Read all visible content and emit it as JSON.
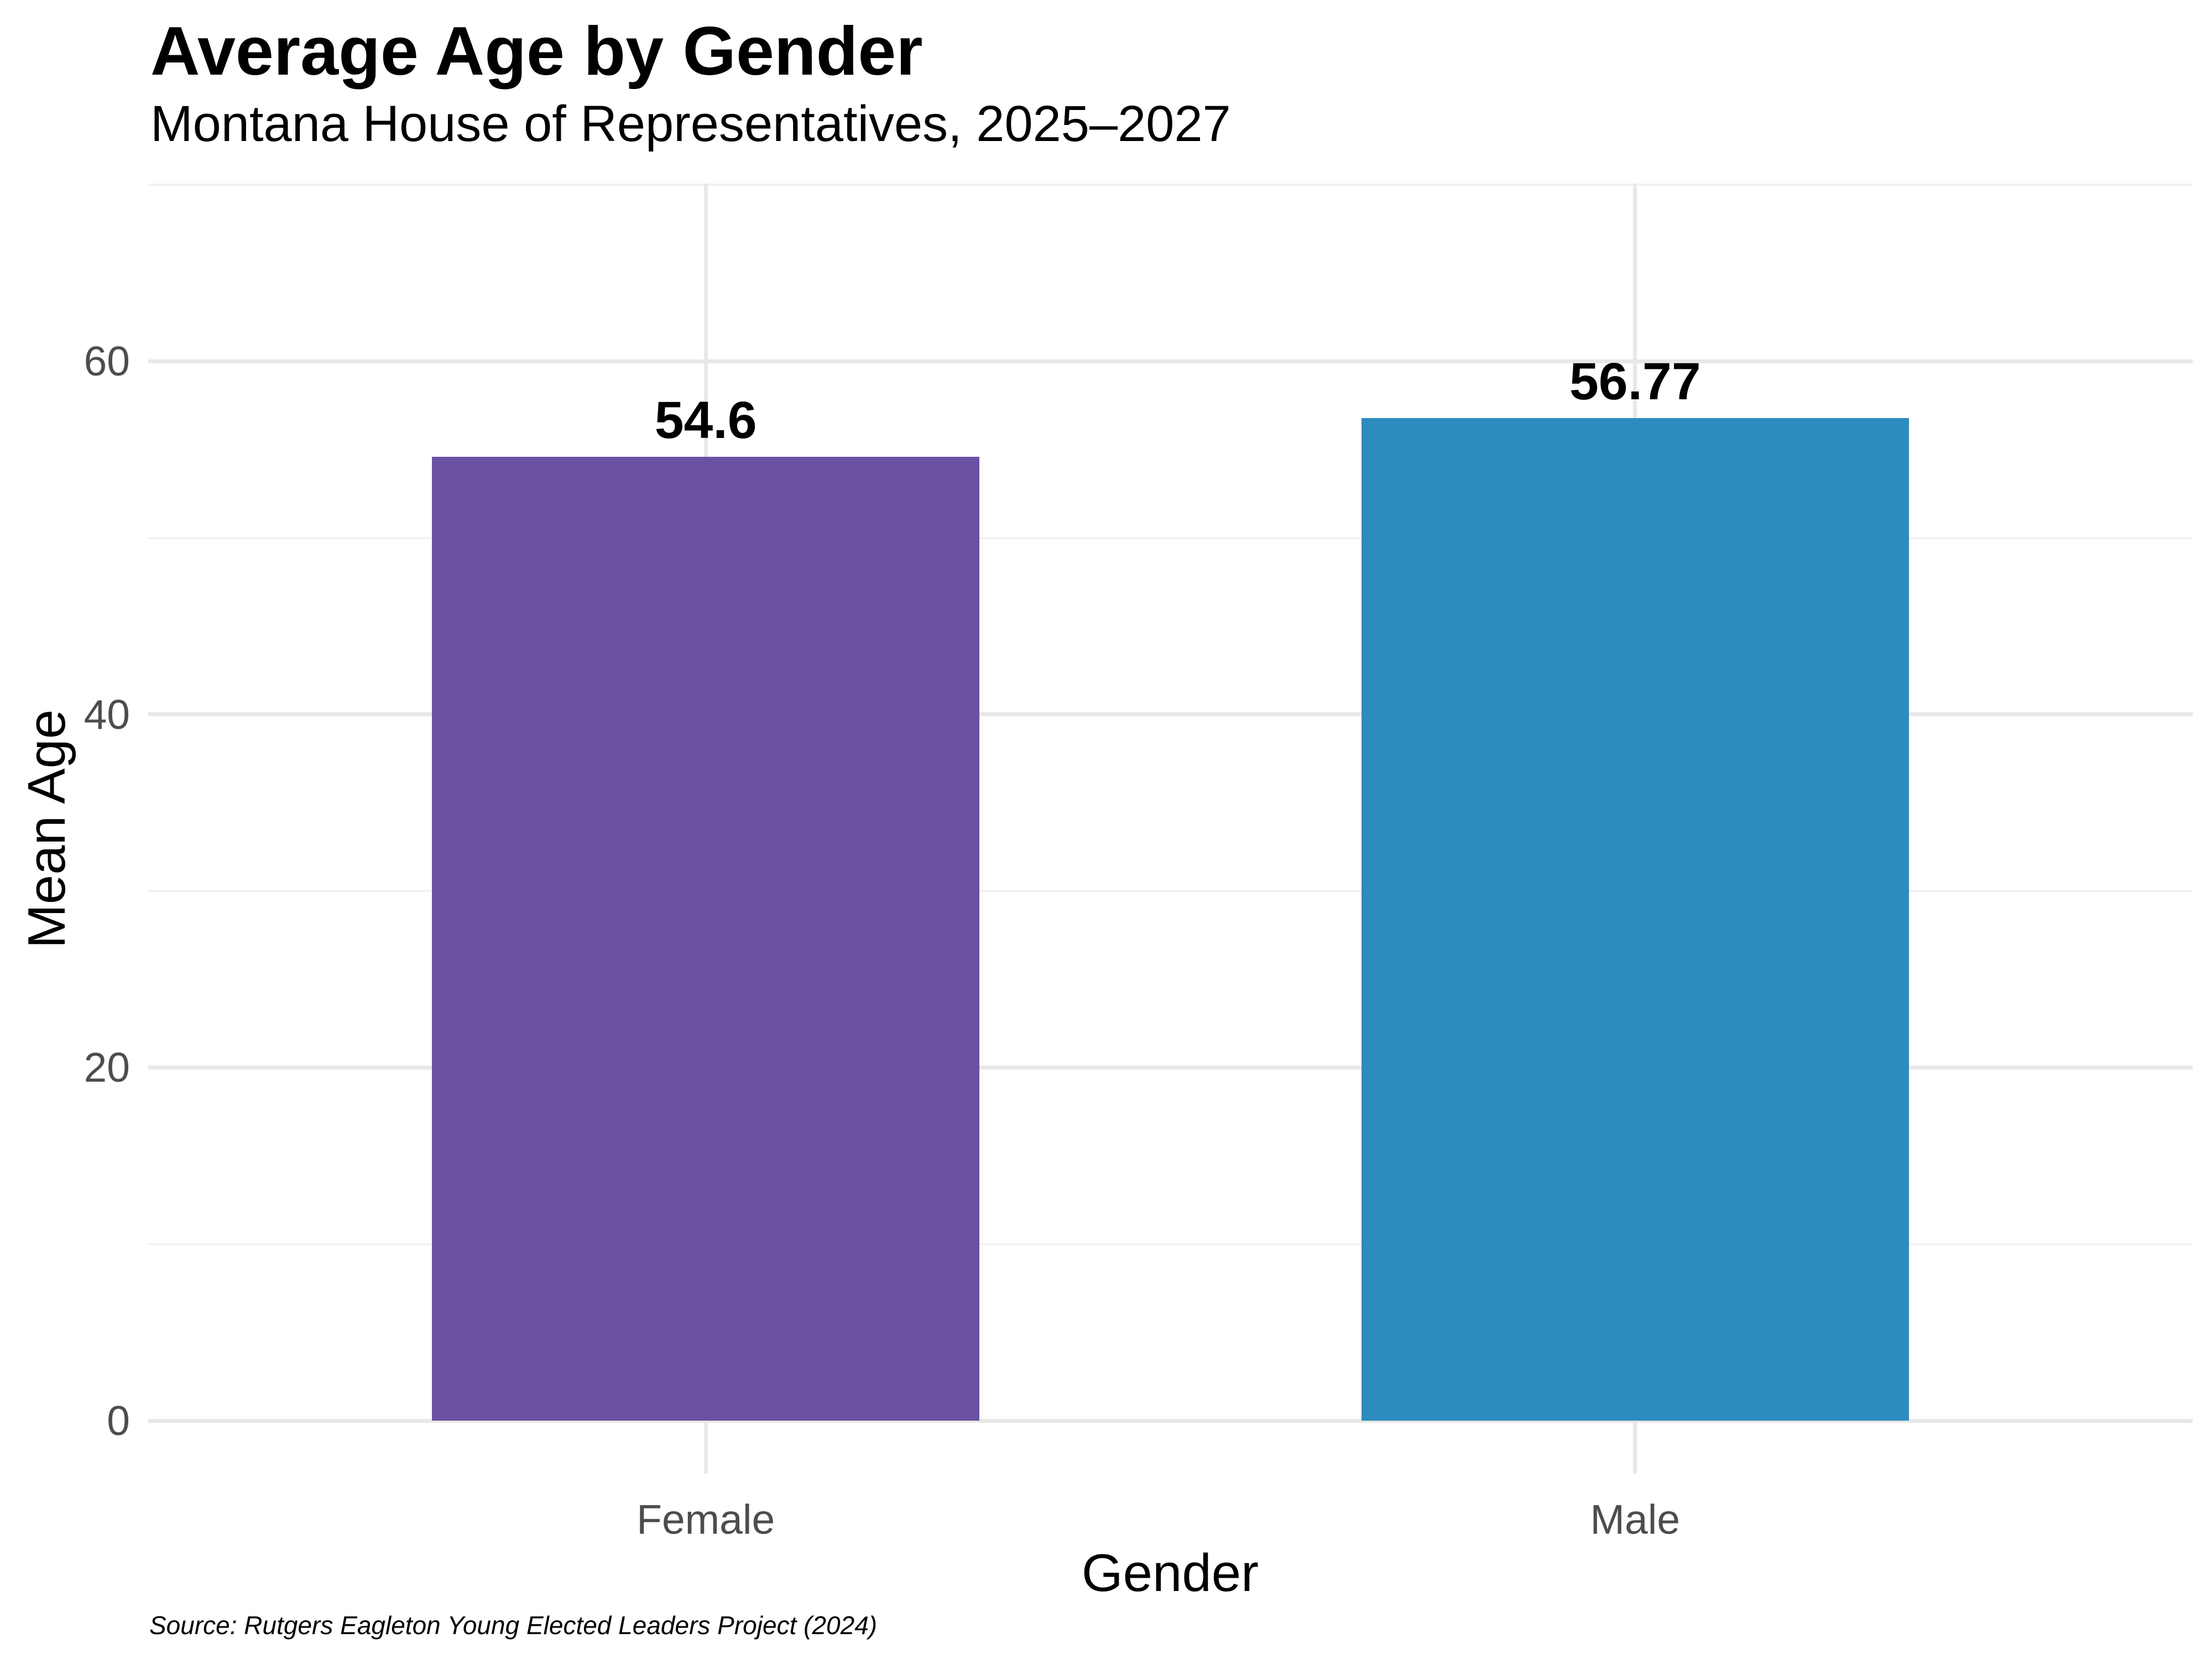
{
  "chart_data": {
    "type": "bar",
    "title": "Average Age by Gender",
    "subtitle": "Montana House of Representatives, 2025–2027",
    "categories": [
      "Female",
      "Male"
    ],
    "values": [
      54.6,
      56.77
    ],
    "value_labels": [
      "54.6",
      "56.77"
    ],
    "bar_colors": [
      "#6a51a3",
      "#2d8cbe"
    ],
    "xlabel": "Gender",
    "ylabel": "Mean Age",
    "ylim": [
      0,
      70
    ],
    "yticks_major": [
      0,
      20,
      40,
      60
    ],
    "yticks_minor": [
      10,
      30,
      50,
      70
    ],
    "grid": "horizontal major+minor; vertical major at category centers; no axis lines or tick marks",
    "legend": "none",
    "caption": "Source: Rutgers Eagleton Young Elected Leaders Project (2024)"
  },
  "colors": {
    "background": "#ffffff",
    "text": "#000000",
    "axis_text": "#4d4d4d",
    "grid_major": "#e8e8e8",
    "grid_minor": "#f2f2f2"
  }
}
